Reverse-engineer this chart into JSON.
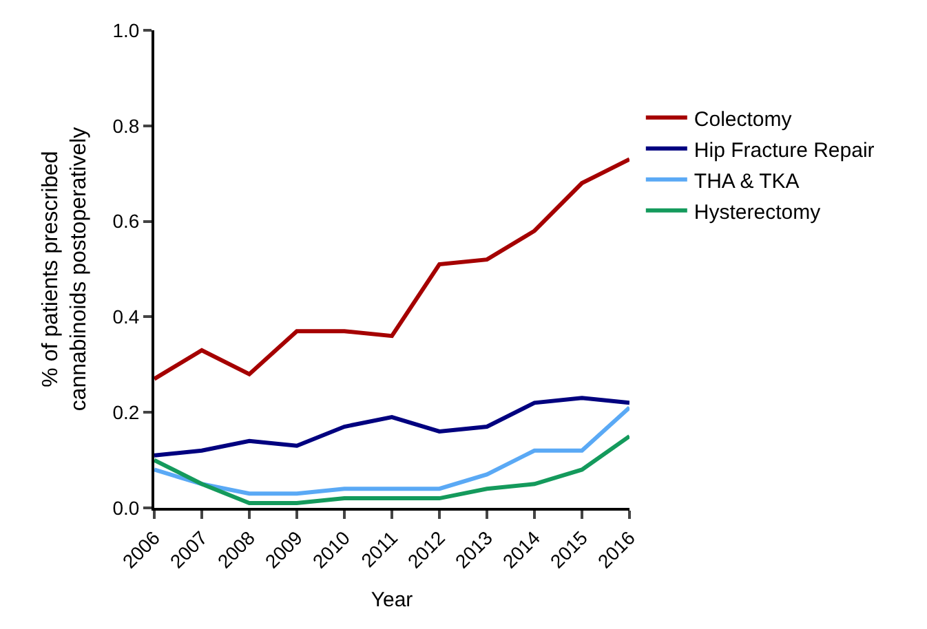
{
  "chart_data": {
    "type": "line",
    "xlabel": "Year",
    "ylabel": "% of patients prescribed\ncannabinoids postoperatively",
    "x": [
      2006,
      2007,
      2008,
      2009,
      2010,
      2011,
      2012,
      2013,
      2014,
      2015,
      2016
    ],
    "xlim": [
      2006,
      2016
    ],
    "xticks": [
      2006,
      2007,
      2008,
      2009,
      2010,
      2011,
      2012,
      2013,
      2014,
      2015,
      2016
    ],
    "ylim": [
      0,
      1
    ],
    "yticks": [
      {
        "value": 0,
        "label": "0.0"
      },
      0.2,
      0.4,
      0.6,
      0.8,
      {
        "value": 1,
        "label": "1.0"
      }
    ],
    "legend": "right",
    "marker": "none",
    "line_style": "solid",
    "series": [
      {
        "name": "Colectomy",
        "color": "#a50000",
        "values": [
          0.27,
          0.33,
          0.28,
          0.37,
          0.37,
          0.36,
          0.51,
          0.52,
          0.58,
          0.68,
          0.73
        ]
      },
      {
        "name": "Hip Fracture Repair",
        "color": "#00007f",
        "values": [
          0.11,
          0.12,
          0.14,
          0.13,
          0.17,
          0.19,
          0.16,
          0.17,
          0.22,
          0.23,
          0.22
        ]
      },
      {
        "name": "THA & TKA",
        "color": "#5aa9f5",
        "values": [
          0.08,
          0.05,
          0.03,
          0.03,
          0.04,
          0.04,
          0.04,
          0.07,
          0.12,
          0.12,
          0.21
        ]
      },
      {
        "name": "Hysterectomy",
        "color": "#149a5c",
        "values": [
          0.1,
          0.05,
          0.01,
          0.01,
          0.02,
          0.02,
          0.02,
          0.04,
          0.05,
          0.08,
          0.15
        ]
      }
    ]
  }
}
